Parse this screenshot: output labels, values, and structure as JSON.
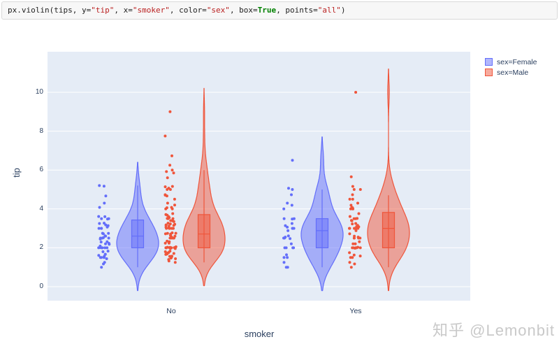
{
  "code": {
    "tokens": [
      {
        "text": "px.violin(tips, y=",
        "type": "plain"
      },
      {
        "text": "\"tip\"",
        "type": "string"
      },
      {
        "text": ", x=",
        "type": "plain"
      },
      {
        "text": "\"smoker\"",
        "type": "string"
      },
      {
        "text": ", color=",
        "type": "plain"
      },
      {
        "text": "\"sex\"",
        "type": "string"
      },
      {
        "text": ", box=",
        "type": "plain"
      },
      {
        "text": "True",
        "type": "keyword"
      },
      {
        "text": ", points=",
        "type": "plain"
      },
      {
        "text": "\"all\"",
        "type": "string"
      },
      {
        "text": ")",
        "type": "plain"
      }
    ]
  },
  "watermark": "知乎 @Lemonbit",
  "colors": {
    "female": "#636efa",
    "male": "#ef553b",
    "plot_bg": "#e5ecf6",
    "grid": "#ffffff",
    "text": "#2a3f5f"
  },
  "chart_data": {
    "type": "violin",
    "box": true,
    "points_mode": "all",
    "title": "",
    "xlabel": "smoker",
    "ylabel": "tip",
    "categories": [
      "No",
      "Yes"
    ],
    "x_axis": {
      "title": "smoker",
      "ticks": [
        "No",
        "Yes"
      ]
    },
    "y_axis": {
      "title": "tip",
      "ticks": [
        0,
        2,
        4,
        6,
        8,
        10
      ]
    },
    "ylim": [
      -0.75,
      12.1
    ],
    "grid": true,
    "legend_position": "top-right",
    "legend": [
      {
        "label": "sex=Female",
        "color": "#636efa"
      },
      {
        "label": "sex=Male",
        "color": "#ef553b"
      }
    ],
    "series": [
      {
        "name": "sex=Female",
        "x": "No",
        "color": "#636efa",
        "box": {
          "min": 1.0,
          "q1": 2.0,
          "median": 2.6,
          "q3": 3.43,
          "max": 5.2
        },
        "tips": [
          1.0,
          1.17,
          1.25,
          1.44,
          1.5,
          1.5,
          1.5,
          1.52,
          1.56,
          1.61,
          1.66,
          1.67,
          1.8,
          1.83,
          2.0,
          2.0,
          2.0,
          2.0,
          2.0,
          2.01,
          2.09,
          2.18,
          2.2,
          2.23,
          2.3,
          2.31,
          2.45,
          2.5,
          2.5,
          2.5,
          2.52,
          2.6,
          2.61,
          2.72,
          2.74,
          2.75,
          3.0,
          3.0,
          3.0,
          3.07,
          3.14,
          3.18,
          3.25,
          3.27,
          3.48,
          3.5,
          3.5,
          3.6,
          3.61,
          4.08,
          4.3,
          4.67,
          5.17,
          5.2
        ]
      },
      {
        "name": "sex=Male",
        "x": "No",
        "color": "#ef553b",
        "box": {
          "min": 1.25,
          "q1": 2.0,
          "median": 2.71,
          "q3": 3.71,
          "max": 6.0
        },
        "tips": [
          1.25,
          1.32,
          1.4,
          1.44,
          1.47,
          1.5,
          1.5,
          1.5,
          1.56,
          1.57,
          1.66,
          1.68,
          1.71,
          1.73,
          1.76,
          1.8,
          1.83,
          1.96,
          1.97,
          2.0,
          2.0,
          2.0,
          2.0,
          2.0,
          2.0,
          2.0,
          2.01,
          2.02,
          2.03,
          2.05,
          2.24,
          2.24,
          2.31,
          2.34,
          2.5,
          2.5,
          2.5,
          2.5,
          2.5,
          2.54,
          2.56,
          2.6,
          2.64,
          2.71,
          2.72,
          2.74,
          2.75,
          2.77,
          3.0,
          3.0,
          3.0,
          3.0,
          3.0,
          3.0,
          3.02,
          3.06,
          3.12,
          3.15,
          3.16,
          3.18,
          3.21,
          3.23,
          3.27,
          3.35,
          3.39,
          3.4,
          3.5,
          3.5,
          3.51,
          3.55,
          3.6,
          3.68,
          3.71,
          3.76,
          4.0,
          4.0,
          4.06,
          4.08,
          4.2,
          4.3,
          4.5,
          4.67,
          4.71,
          4.73,
          5.0,
          5.0,
          5.07,
          5.14,
          5.16,
          5.6,
          5.85,
          5.92,
          6.0,
          6.25,
          6.73,
          7.75,
          9.0
        ]
      },
      {
        "name": "sex=Female",
        "x": "Yes",
        "color": "#636efa",
        "box": {
          "min": 1.0,
          "q1": 2.0,
          "median": 2.88,
          "q3": 3.5,
          "max": 5.0
        },
        "tips": [
          1.0,
          1.0,
          1.25,
          1.5,
          1.5,
          1.64,
          2.0,
          2.0,
          2.0,
          2.0,
          2.2,
          2.47,
          2.5,
          2.5,
          2.55,
          2.61,
          2.88,
          3.0,
          3.0,
          3.0,
          3.06,
          3.14,
          3.25,
          3.48,
          3.5,
          3.5,
          4.0,
          4.19,
          4.3,
          4.73,
          5.0,
          5.06,
          6.5
        ]
      },
      {
        "name": "sex=Male",
        "x": "Yes",
        "color": "#ef553b",
        "box": {
          "min": 1.0,
          "q1": 2.0,
          "median": 3.0,
          "q3": 3.82,
          "max": 4.7
        },
        "tips": [
          1.0,
          1.17,
          1.25,
          1.5,
          1.5,
          1.58,
          1.63,
          1.75,
          1.98,
          2.0,
          2.0,
          2.0,
          2.0,
          2.0,
          2.0,
          2.03,
          2.2,
          2.2,
          2.31,
          2.5,
          2.5,
          2.5,
          2.5,
          2.55,
          2.6,
          2.72,
          2.88,
          3.0,
          3.0,
          3.0,
          3.0,
          3.0,
          3.0,
          3.08,
          3.09,
          3.16,
          3.23,
          3.25,
          3.39,
          3.41,
          3.5,
          3.5,
          3.51,
          3.76,
          4.0,
          4.0,
          4.0,
          4.06,
          4.08,
          4.19,
          4.3,
          4.5,
          4.5,
          4.73,
          5.0,
          5.0,
          5.16,
          5.65,
          3.61,
          10.0
        ]
      }
    ]
  }
}
